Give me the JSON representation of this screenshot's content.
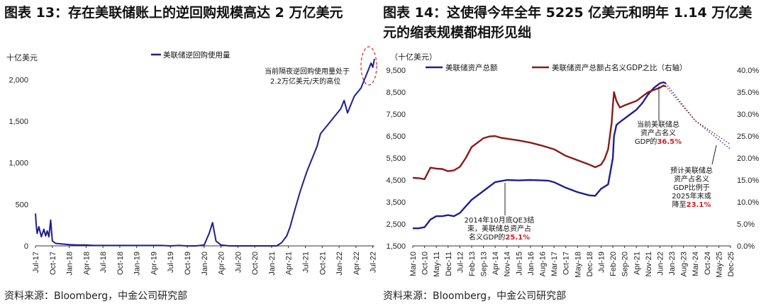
{
  "left": {
    "title": "图表 13：存在美联储账上的逆回购规模高达 2 万亿美元",
    "source": "资料来源：Bloomberg，中金公司研究部",
    "chart_data": {
      "type": "line",
      "unit": "十亿美元",
      "legend": [
        "美联储逆回购使用量"
      ],
      "annotation": [
        "当前隔夜逆回购使用量处于",
        "2.2万亿美元/天的高位"
      ],
      "ylim": [
        0,
        2200
      ],
      "yticks": [
        0,
        500,
        1000,
        1500,
        2000
      ],
      "ytick_labels": [
        "0",
        "500",
        "1,000",
        "1,500",
        "2,000"
      ],
      "xticks": [
        "Jul-17",
        "Oct-17",
        "Jan-18",
        "Apr-18",
        "Jul-18",
        "Oct-18",
        "Jan-19",
        "Apr-19",
        "Jul-19",
        "Oct-19",
        "Jan-20",
        "Apr-20",
        "Jul-20",
        "Oct-20",
        "Jan-21",
        "Apr-21",
        "Jul-21",
        "Oct-21",
        "Jan-22",
        "Apr-22",
        "Jul-22"
      ],
      "series": [
        {
          "name": "美联储逆回购使用量",
          "color": "#1f1f8f",
          "x": [
            0,
            0.05,
            0.1,
            0.2,
            0.35,
            0.5,
            0.6,
            0.7,
            0.8,
            0.9,
            1.0,
            1.2,
            1.5,
            2,
            2.5,
            3,
            3.5,
            4,
            4.5,
            5,
            5.5,
            6,
            6.5,
            7,
            7.5,
            8,
            8.5,
            9,
            9.5,
            10,
            10.3,
            10.5,
            10.7,
            11,
            11.5,
            12,
            12.5,
            13,
            13.5,
            14,
            14.3,
            14.6,
            14.9,
            15.1,
            15.3,
            15.5,
            15.7,
            15.9,
            16.1,
            16.3,
            16.5,
            16.7,
            16.9,
            17.1,
            17.3,
            17.5,
            17.7,
            17.9,
            18.1,
            18.3,
            18.5,
            18.7,
            18.9,
            19.1,
            19.3,
            19.5,
            19.7,
            19.9,
            20.0,
            20.1
          ],
          "values": [
            390,
            240,
            150,
            230,
            110,
            200,
            120,
            180,
            110,
            310,
            60,
            30,
            25,
            15,
            10,
            10,
            5,
            5,
            5,
            5,
            5,
            5,
            5,
            5,
            5,
            0,
            5,
            0,
            0,
            10,
            150,
            280,
            60,
            10,
            0,
            0,
            0,
            0,
            0,
            0,
            0,
            40,
            120,
            230,
            380,
            520,
            660,
            780,
            900,
            1000,
            1100,
            1200,
            1350,
            1400,
            1450,
            1500,
            1550,
            1600,
            1650,
            1750,
            1600,
            1700,
            1800,
            1850,
            1900,
            2000,
            2100,
            2200,
            2150,
            2250
          ]
        }
      ]
    }
  },
  "right": {
    "title": "图表 14：这使得今年全年 5225 亿美元和明年 1.14 万亿美元的缩表规模都相形见绌",
    "source": "资料来源：Bloomberg，中金公司研究部",
    "chart_data": {
      "type": "line",
      "unit": "（十亿美元）",
      "legend": [
        "美联储资产总额",
        "美联储资产总额占名义GDP之比（右轴）"
      ],
      "ylim_left": [
        1500,
        9500
      ],
      "yticks_left": [
        1500,
        2500,
        3500,
        4500,
        5500,
        6500,
        7500,
        8500,
        9500
      ],
      "ylim_right": [
        0,
        40
      ],
      "yticks_right": [
        "0.0%",
        "5.0%",
        "10.0%",
        "15.0%",
        "20.0%",
        "25.0%",
        "30.0%",
        "35.0%",
        "40.0%"
      ],
      "xticks": [
        "Mar-10",
        "Oct-10",
        "May-11",
        "Dec-11",
        "Jul-12",
        "Feb-13",
        "Sep-13",
        "Apr-14",
        "Nov-14",
        "Jun-15",
        "Jan-16",
        "Aug-16",
        "Mar-17",
        "Oct-17",
        "May-18",
        "Dec-18",
        "Jul-19",
        "Feb-20",
        "Sep-20",
        "Apr-21",
        "Nov-21",
        "Jun-22",
        "Jan-23",
        "Aug-23",
        "Mar-24",
        "Oct-24",
        "May-25",
        "Dec-25"
      ],
      "annotations": [
        {
          "lines": [
            "当前美联储总",
            "资产占名义"
          ],
          "prefix": "GDP的",
          "highlight": "36.5%"
        },
        {
          "lines": [
            "2014年10月底QE3结",
            "束，美联储总资产占"
          ],
          "prefix": "名义GDP的",
          "highlight": "25.1%"
        },
        {
          "lines": [
            "预计美联储总",
            "资产占名义",
            "GDP比例于",
            "2025年末或"
          ],
          "prefix": "降至",
          "highlight": "23.1%"
        }
      ],
      "series": [
        {
          "name": "美联储资产总额",
          "color": "#1f1f8f",
          "x": [
            0,
            0.5,
            1,
            1.5,
            2,
            2.5,
            3,
            3.5,
            4,
            4.5,
            5,
            6,
            7,
            8,
            9,
            10,
            11,
            11.5,
            12,
            13,
            14,
            15,
            15.5,
            16,
            16.3,
            16.6,
            17,
            17.1,
            17.3,
            17.5,
            18,
            18.5,
            19,
            19.5,
            20,
            20.5,
            21,
            21.3,
            21.5
          ],
          "values": [
            2300,
            2300,
            2350,
            2700,
            2850,
            2850,
            2900,
            2850,
            3000,
            3300,
            3600,
            4000,
            4400,
            4500,
            4480,
            4500,
            4480,
            4470,
            4400,
            4150,
            3950,
            3800,
            3780,
            4100,
            4200,
            4300,
            5500,
            6500,
            7000,
            7100,
            7300,
            7500,
            7700,
            8000,
            8400,
            8700,
            8900,
            8950,
            8900
          ]
        },
        {
          "name": "美联储资产总额占名义GDP之比（右轴）",
          "color": "#8b1a1a",
          "x": [
            0,
            0.5,
            1,
            1.5,
            2,
            2.5,
            3,
            3.5,
            4,
            4.5,
            5,
            5.5,
            6,
            6.5,
            7,
            7.5,
            8,
            9,
            10,
            11,
            12,
            13,
            14,
            15,
            15.5,
            16,
            16.3,
            16.6,
            16.9,
            17.0,
            17.1,
            17.3,
            17.6,
            18,
            18.5,
            19,
            19.5,
            20,
            20.5,
            21,
            21.3,
            21.5
          ],
          "values": [
            15.5,
            15.4,
            15.2,
            17.8,
            17.6,
            17.5,
            17.0,
            17.2,
            18.0,
            20.0,
            22.5,
            23.5,
            24.5,
            24.9,
            25.0,
            24.6,
            24.4,
            24.0,
            23.5,
            22.8,
            22.0,
            20.5,
            19.5,
            18.5,
            17.9,
            18.5,
            19.8,
            22.0,
            28.0,
            32.0,
            35.0,
            33.0,
            31.5,
            32.0,
            32.5,
            33.0,
            34.0,
            35.0,
            35.5,
            36.0,
            36.5,
            36.3
          ]
        }
      ]
    }
  }
}
